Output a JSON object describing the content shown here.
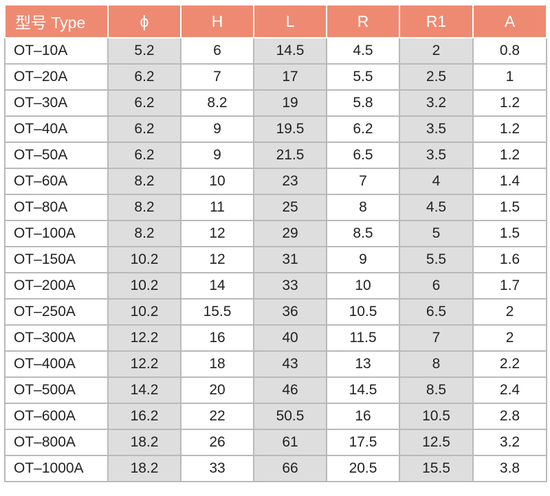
{
  "table": {
    "headers": [
      "型号 Type",
      "ϕ",
      "H",
      "L",
      "R",
      "R1",
      "A"
    ],
    "rows": [
      [
        "OT–10A",
        "5.2",
        "6",
        "14.5",
        "4.5",
        "2",
        "0.8"
      ],
      [
        "OT–20A",
        "6.2",
        "7",
        "17",
        "5.5",
        "2.5",
        "1"
      ],
      [
        "OT–30A",
        "6.2",
        "8.2",
        "19",
        "5.8",
        "3.2",
        "1.2"
      ],
      [
        "OT–40A",
        "6.2",
        "9",
        "19.5",
        "6.2",
        "3.5",
        "1.2"
      ],
      [
        "OT–50A",
        "6.2",
        "9",
        "21.5",
        "6.5",
        "3.5",
        "1.2"
      ],
      [
        "OT–60A",
        "8.2",
        "10",
        "23",
        "7",
        "4",
        "1.4"
      ],
      [
        "OT–80A",
        "8.2",
        "11",
        "25",
        "8",
        "4.5",
        "1.5"
      ],
      [
        "OT–100A",
        "8.2",
        "12",
        "29",
        "8.5",
        "5",
        "1.5"
      ],
      [
        "OT–150A",
        "10.2",
        "12",
        "31",
        "9",
        "5.5",
        "1.6"
      ],
      [
        "OT–200A",
        "10.2",
        "14",
        "33",
        "10",
        "6",
        "1.7"
      ],
      [
        "OT–250A",
        "10.2",
        "15.5",
        "36",
        "10.5",
        "6.5",
        "2"
      ],
      [
        "OT–300A",
        "12.2",
        "16",
        "40",
        "11.5",
        "7",
        "2"
      ],
      [
        "OT–400A",
        "12.2",
        "18",
        "43",
        "13",
        "8",
        "2.2"
      ],
      [
        "OT–500A",
        "14.2",
        "20",
        "46",
        "14.5",
        "8.5",
        "2.4"
      ],
      [
        "OT–600A",
        "16.2",
        "22",
        "50.5",
        "16",
        "10.5",
        "2.8"
      ],
      [
        "OT–800A",
        "18.2",
        "26",
        "61",
        "17.5",
        "12.5",
        "3.2"
      ],
      [
        "OT–1000A",
        "18.2",
        "33",
        "66",
        "20.5",
        "15.5",
        "3.8"
      ]
    ]
  },
  "colors": {
    "header_bg": "#ee8a72",
    "header_text": "#ffffff",
    "shaded_column_bg": "#dedede",
    "grid": "#b9b9b9"
  }
}
